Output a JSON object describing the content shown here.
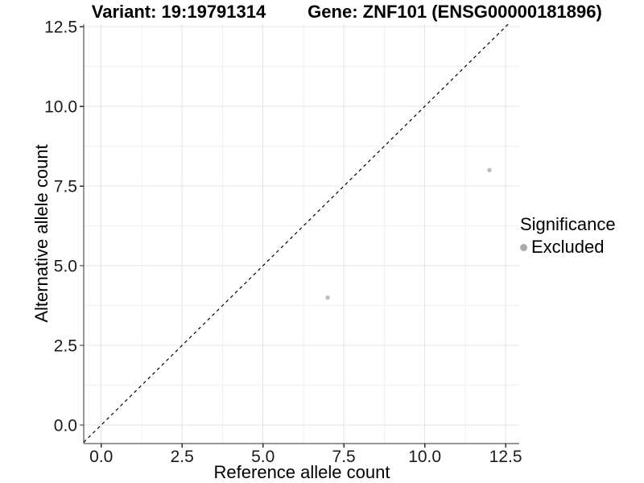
{
  "chart_data": {
    "type": "scatter",
    "title_left": "Variant: 19:19791314",
    "title_right": "Gene: ZNF101 (ENSG00000181896)",
    "xlabel": "Reference allele count",
    "ylabel": "Alternative allele count",
    "xlim": [
      -0.54,
      12.92
    ],
    "ylim": [
      -0.58,
      12.58
    ],
    "x_ticks": {
      "values": [
        0,
        2.5,
        5,
        7.5,
        10,
        12.5
      ],
      "labels": [
        "0.0",
        "2.5",
        "5.0",
        "7.5",
        "10.0",
        "12.5"
      ]
    },
    "y_ticks": {
      "values": [
        0,
        2.5,
        5,
        7.5,
        10,
        12.5
      ],
      "labels": [
        "0.0",
        "2.5",
        "5.0",
        "7.5",
        "10.0",
        "12.5"
      ]
    },
    "grid": {
      "major": true,
      "minor": true
    },
    "series": [
      {
        "name": "Excluded",
        "color": "#bdbdbd",
        "points": [
          {
            "x": 7,
            "y": 4
          },
          {
            "x": 12,
            "y": 8
          }
        ]
      }
    ],
    "reference_line": {
      "kind": "identity",
      "slope": 1,
      "intercept": 0,
      "style": "dashed",
      "color": "#000000"
    },
    "legend": {
      "position": "right",
      "title": "Significance",
      "items": [
        {
          "label": "Excluded",
          "color": "#ababab"
        }
      ]
    },
    "colors": {
      "background": "#ffffff",
      "grid_major": "#e4e4e4",
      "grid_minor": "#f1f1f1",
      "axis_line": "#2f2f2f",
      "tick_text": "#1a1a1a"
    }
  }
}
